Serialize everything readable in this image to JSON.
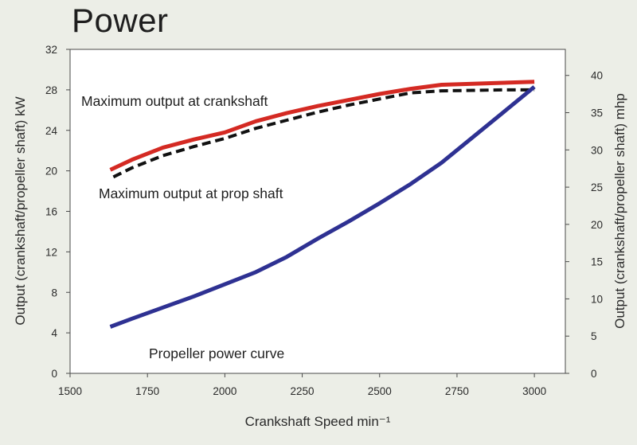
{
  "chart_data": {
    "type": "line",
    "title": "Power",
    "xlabel": "Crankshaft Speed min⁻¹",
    "ylabel": "Output (crankshaft/propeller shaft) kW",
    "y2label": "Output (crankshaft/propeller shaft) mhp",
    "xlim": [
      1500,
      3100
    ],
    "ylim": [
      0,
      32
    ],
    "y2lim": [
      0,
      43.5
    ],
    "x_ticks": [
      1500,
      1750,
      2000,
      2250,
      2500,
      2750,
      3000
    ],
    "y_ticks": [
      0,
      4,
      8,
      12,
      16,
      20,
      24,
      28,
      32
    ],
    "y2_ticks": [
      0,
      5,
      10,
      15,
      20,
      25,
      30,
      35,
      40
    ],
    "grid": false,
    "series": [
      {
        "name": "Maximum output at crankshaft",
        "color": "#d42a23",
        "style": "solid",
        "x": [
          1630,
          1700,
          1800,
          1900,
          2000,
          2100,
          2200,
          2300,
          2400,
          2500,
          2600,
          2700,
          2800,
          2900,
          3000
        ],
        "values": [
          20.1,
          21.1,
          22.3,
          23.1,
          23.8,
          24.9,
          25.7,
          26.4,
          27.0,
          27.6,
          28.1,
          28.5,
          28.6,
          28.7,
          28.8
        ]
      },
      {
        "name": "Maximum output at prop shaft",
        "color": "#111111",
        "style": "dashed",
        "x": [
          1640,
          1700,
          1800,
          1900,
          2000,
          2100,
          2200,
          2300,
          2400,
          2500,
          2600,
          2700,
          2800,
          2900,
          3000
        ],
        "values": [
          19.4,
          20.3,
          21.5,
          22.4,
          23.2,
          24.2,
          25.0,
          25.8,
          26.5,
          27.1,
          27.7,
          27.9,
          27.95,
          28.0,
          28.0
        ]
      },
      {
        "name": "Propeller power curve",
        "color": "#2e3192",
        "style": "solid",
        "x": [
          1630,
          1700,
          1800,
          1900,
          2000,
          2100,
          2200,
          2300,
          2400,
          2500,
          2600,
          2700,
          2800,
          2900,
          3000
        ],
        "values": [
          4.6,
          5.4,
          6.5,
          7.6,
          8.8,
          10.0,
          11.5,
          13.3,
          15.0,
          16.8,
          18.7,
          20.8,
          23.3,
          25.8,
          28.3
        ]
      }
    ],
    "annotations": [
      {
        "text": "Maximum output at crankshaft",
        "series": 0
      },
      {
        "text": "Maximum output at prop shaft",
        "series": 1
      },
      {
        "text": "Propeller power curve",
        "series": 2
      }
    ]
  }
}
